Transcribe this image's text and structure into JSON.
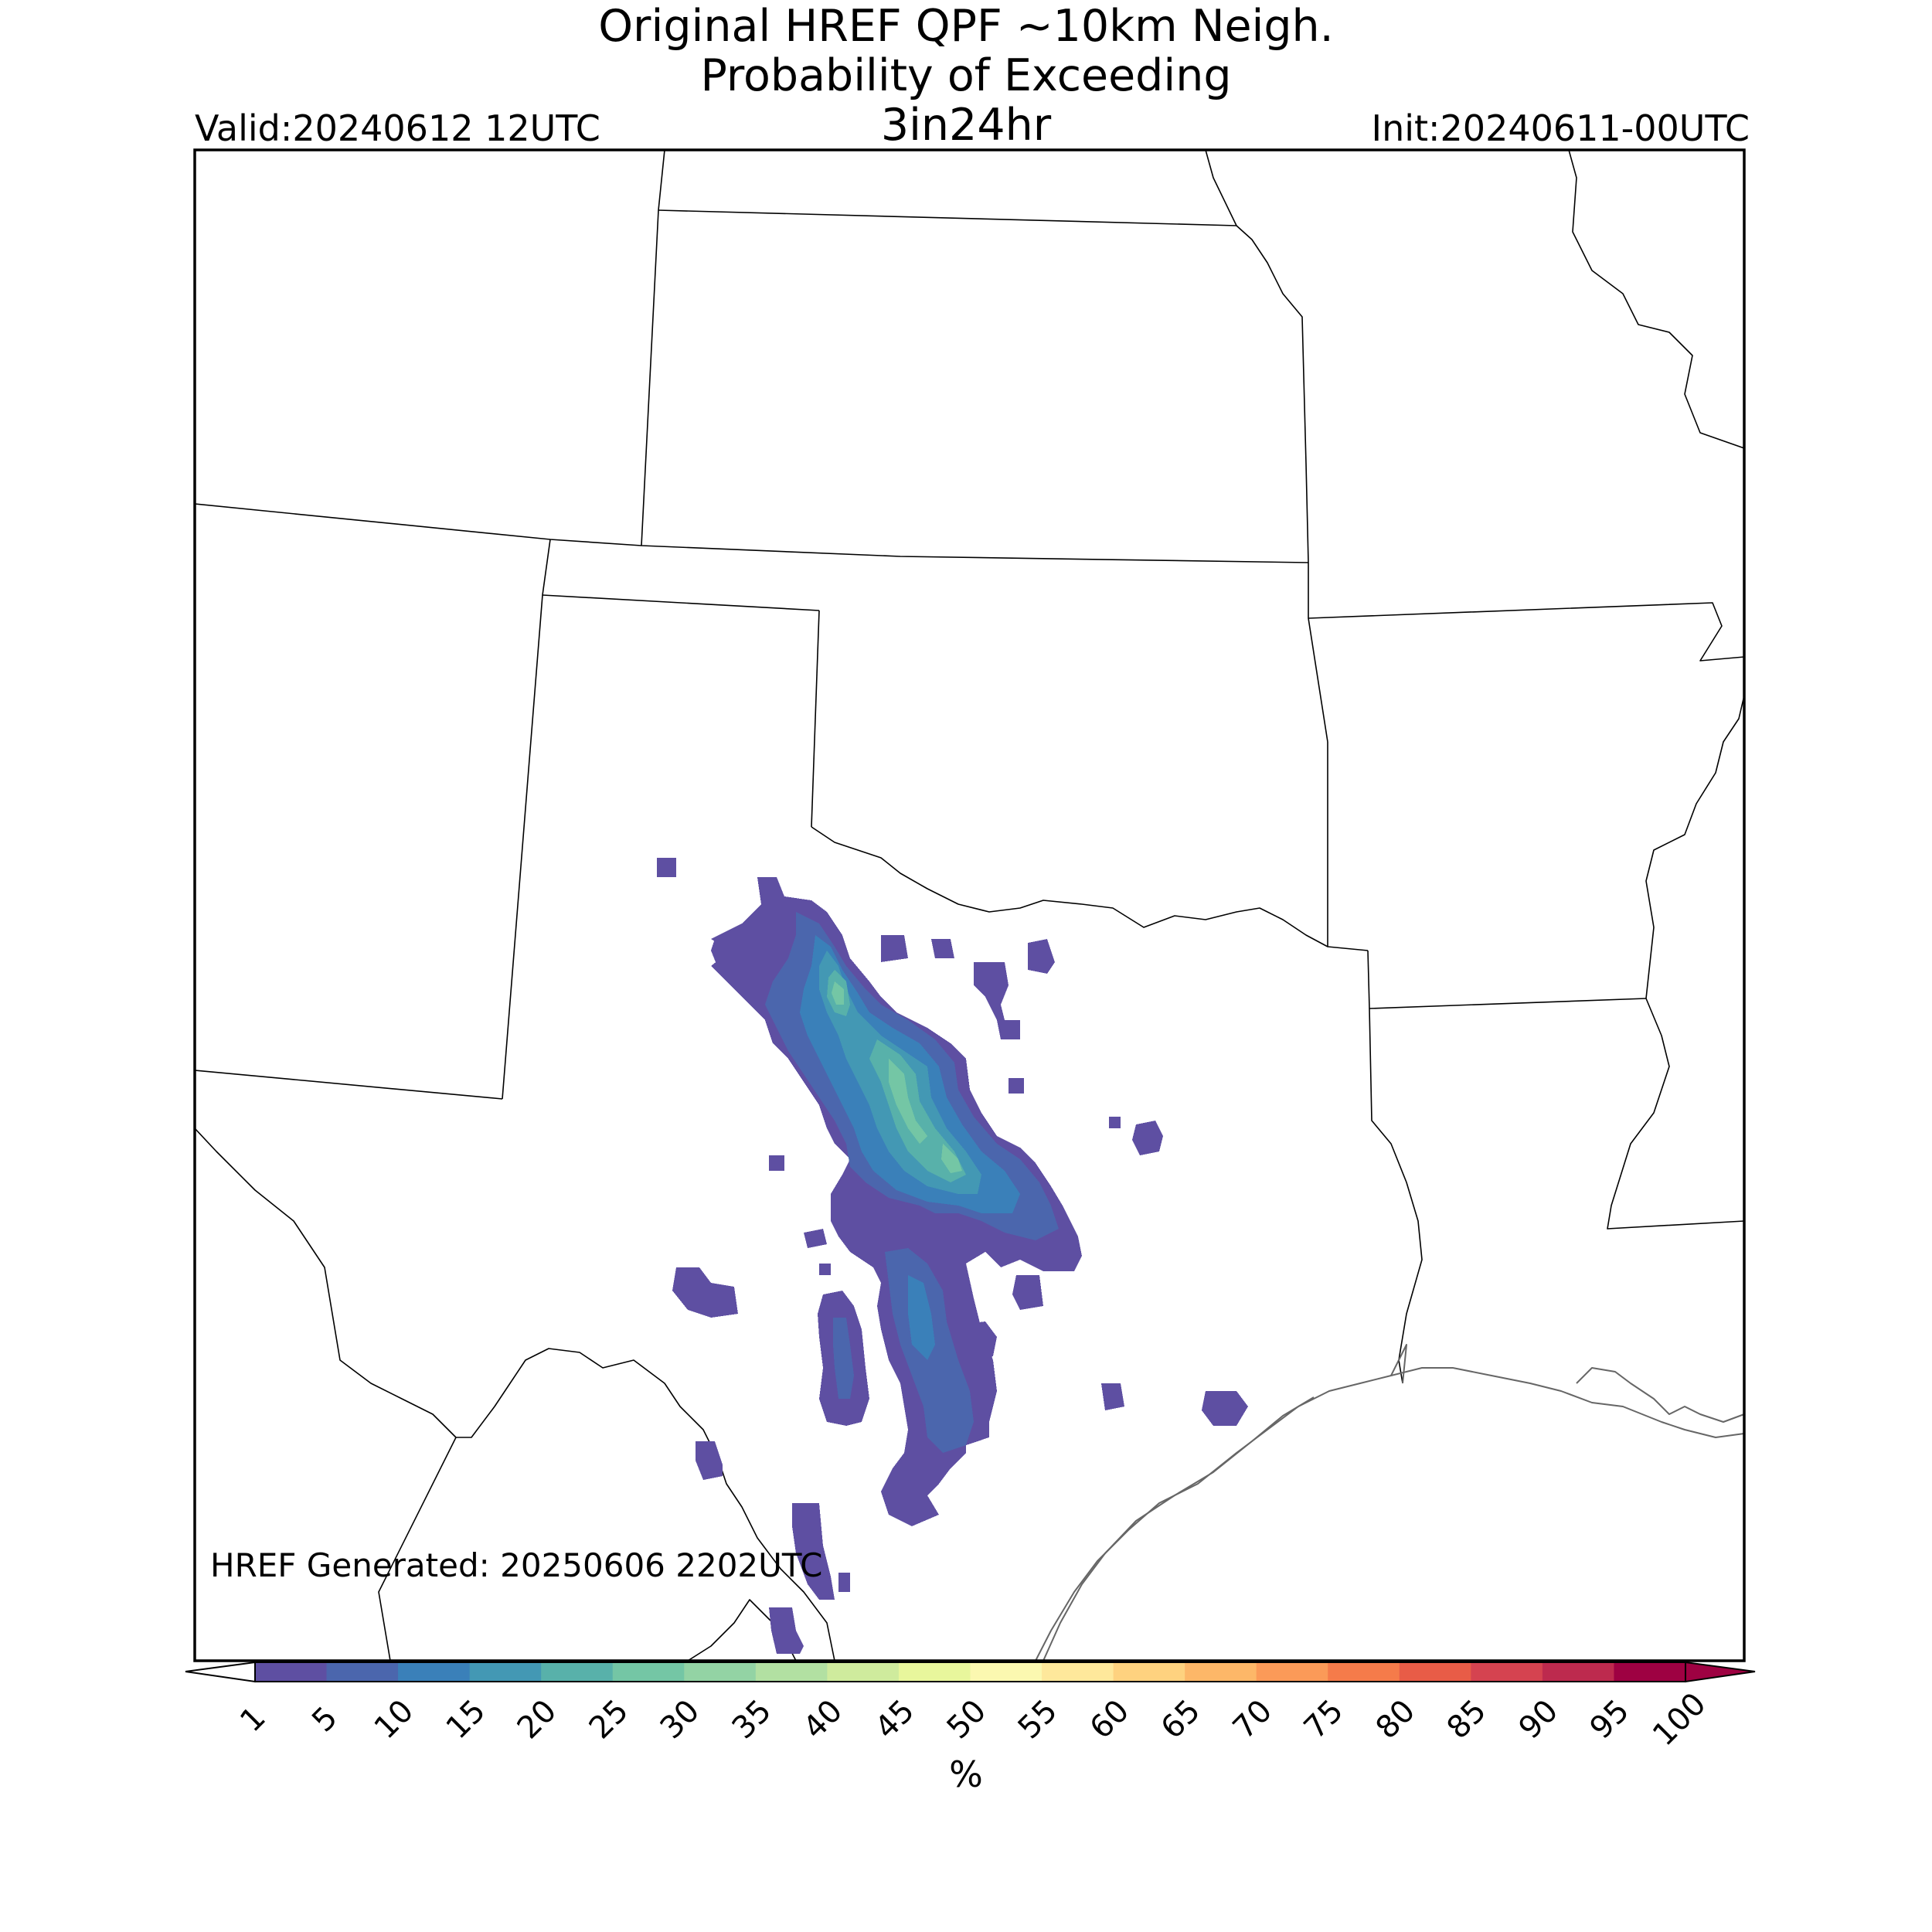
{
  "title": {
    "line1": "Original HREF QPF ~10km Neigh.",
    "line2": "Probability of Exceeding",
    "line3": "3in24hr"
  },
  "valid": "Valid:20240612 12UTC",
  "init": "Init:20240611-00UTC",
  "generated": "HREF Generated: 20250606 2202UTC",
  "colorbar": {
    "units": "%",
    "ticks": [
      "1",
      "5",
      "10",
      "15",
      "20",
      "25",
      "30",
      "35",
      "40",
      "45",
      "50",
      "55",
      "60",
      "65",
      "70",
      "75",
      "80",
      "85",
      "90",
      "95",
      "100"
    ],
    "colors": [
      "#5e4fa2",
      "#4b66ad",
      "#3a80b9",
      "#4398b4",
      "#58b1aa",
      "#74c6a5",
      "#93d3a4",
      "#b2e0a2",
      "#cfeb9d",
      "#e8f69c",
      "#fbf8b0",
      "#fee89b",
      "#fed27f",
      "#fdb768",
      "#fb9a58",
      "#f57b4a",
      "#e85c47",
      "#d54350",
      "#bd2a4e",
      "#9e0142"
    ],
    "under_color": "#ffffff",
    "over_color": "#9e0142"
  },
  "map": {
    "region": "South-Central United States (Texas and surrounding states)",
    "field": "3in/24hr exceedance probability",
    "max_probability_percent": 30,
    "probability_levels": [
      {
        "label": "1-5 %",
        "color": "#5e4fa2"
      },
      {
        "label": "5-10 %",
        "color": "#4b66ad"
      },
      {
        "label": "10-15 %",
        "color": "#3a80b9"
      },
      {
        "label": "15-20 %",
        "color": "#4398b4"
      },
      {
        "label": "20-25 %",
        "color": "#58b1aa"
      },
      {
        "label": "25-30 %",
        "color": "#74c6a5"
      }
    ]
  }
}
